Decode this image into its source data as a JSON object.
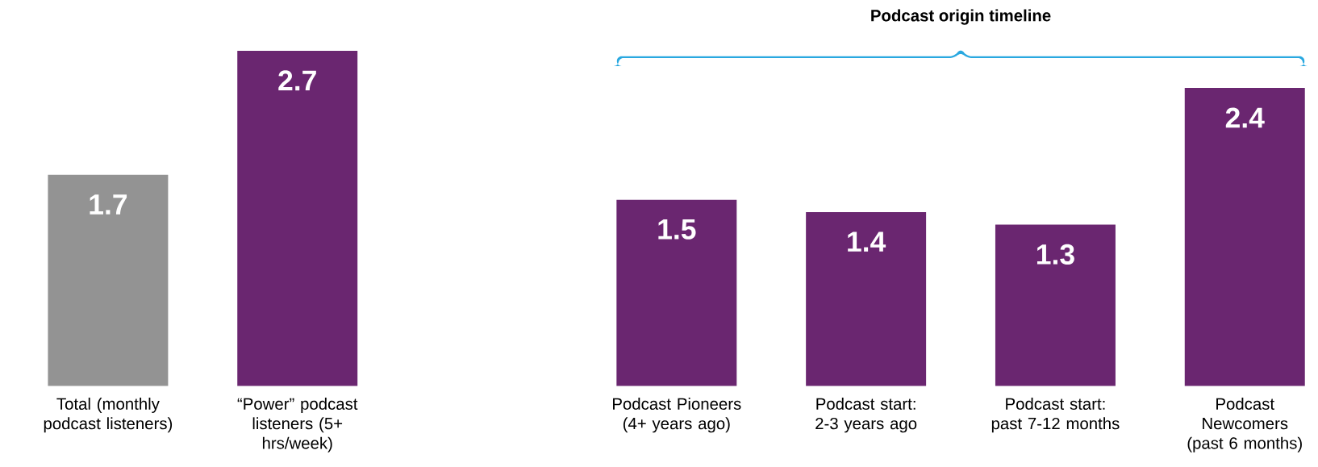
{
  "chart_data": [
    {
      "type": "bar",
      "categories": [
        "Total (monthly podcast listeners)",
        "“Power” podcast listeners (5+ hrs/week)"
      ],
      "values": [
        1.7,
        2.7
      ],
      "colors": [
        "#939393",
        "#6a2670"
      ],
      "data_labels": true
    },
    {
      "type": "bar",
      "title": "Podcast origin timeline",
      "categories": [
        "Podcast Pioneers (4+ years ago)",
        "Podcast start: 2-3 years ago",
        "Podcast start: past 7-12 months",
        "Podcast Newcomers (past 6 months)"
      ],
      "values": [
        1.5,
        1.4,
        1.3,
        2.4
      ],
      "color": "#6a2670",
      "data_labels": true
    }
  ]
}
